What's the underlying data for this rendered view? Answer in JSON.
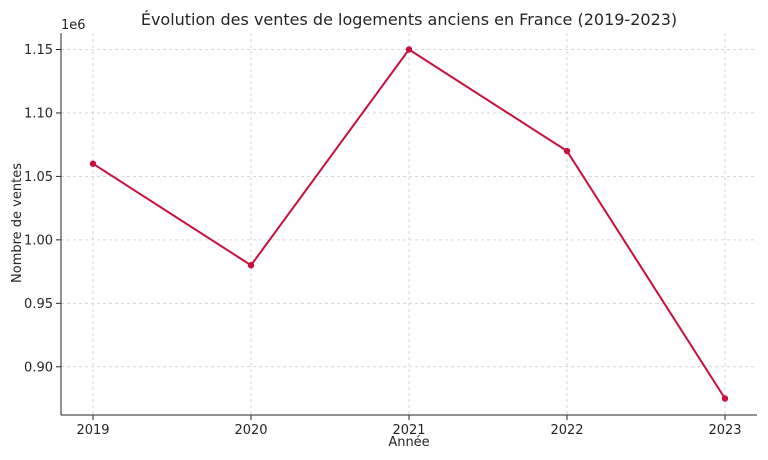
{
  "chart_data": {
    "type": "line",
    "title": "Évolution des ventes de logements anciens en France (2019-2023)",
    "xlabel": "Année",
    "ylabel": "Nombre de ventes",
    "y_offset_label": "1e6",
    "x": [
      "2019",
      "2020",
      "2021",
      "2022",
      "2023"
    ],
    "series": [
      {
        "values": [
          1060000,
          980000,
          1150000,
          1070000,
          875000
        ],
        "color": "#c8103c"
      }
    ],
    "ylim": [
      862000,
      1163000
    ],
    "yticks": [
      0.9,
      0.95,
      1.0,
      1.05,
      1.1,
      1.15
    ],
    "ytick_labels": [
      "0.90",
      "0.95",
      "1.00",
      "1.05",
      "1.10",
      "1.15"
    ],
    "ytick_scale": 1000000,
    "grid": true,
    "grid_color": "#cccccc",
    "axis_color": "#262626"
  }
}
